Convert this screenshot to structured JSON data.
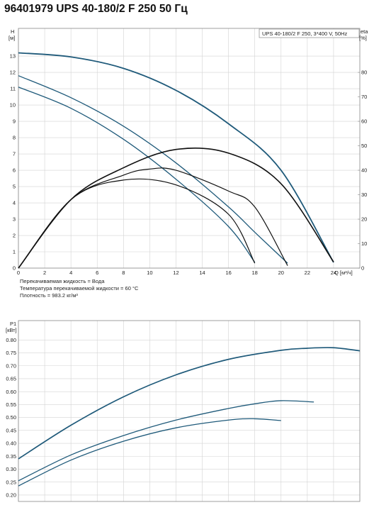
{
  "title": "96401979 UPS 40-180/2 F 250 50 Гц",
  "fluid_info": [
    "Перекачиваемая жидкость = Вода",
    "Температура перекачиваемой жидкости = 60 °C",
    "Плотность = 983.2 кг/м³"
  ],
  "colors": {
    "head": "#1f5a7a",
    "eff": "#111111",
    "power": "#1f5a7a",
    "grid": "#d3d3d3",
    "frame": "#888888"
  },
  "chart_data": [
    {
      "type": "line",
      "legend_text": "UPS 40-180/2 F 250, 3*400 V, 50Hz",
      "legend_position": "top-right",
      "ylabel": [
        "H",
        "[м]"
      ],
      "y2label": [
        "eta",
        "[%]"
      ],
      "xlabel": "Q [м³/ч]",
      "xlim": [
        0,
        26
      ],
      "ylim": [
        0,
        14.7
      ],
      "y2lim": [
        0,
        98
      ],
      "xticks": [
        0,
        2,
        4,
        6,
        8,
        10,
        12,
        14,
        16,
        18,
        20,
        22,
        24
      ],
      "yticks": [
        0,
        1,
        2,
        3,
        4,
        5,
        6,
        7,
        8,
        9,
        10,
        11,
        12,
        13
      ],
      "y2ticks": [
        0,
        10,
        20,
        30,
        40,
        50,
        60,
        70,
        80
      ],
      "grid": true,
      "head_series": [
        {
          "x": [
            0,
            4,
            8,
            12,
            16,
            20,
            24
          ],
          "y": [
            13.2,
            12.95,
            12.25,
            10.9,
            8.85,
            6.0,
            0.35
          ]
        },
        {
          "x": [
            0,
            4,
            8,
            12,
            16,
            18,
            20.5
          ],
          "y": [
            11.8,
            10.45,
            8.7,
            6.45,
            3.75,
            2.2,
            0.3
          ]
        },
        {
          "x": [
            0,
            4,
            8,
            12,
            16,
            18
          ],
          "y": [
            11.1,
            9.8,
            7.9,
            5.45,
            2.55,
            0.35
          ]
        }
      ],
      "efficiency_series": [
        {
          "x": [
            0,
            4,
            8,
            12,
            16,
            20,
            24
          ],
          "y": [
            0,
            28,
            41,
            48.5,
            47,
            34.5,
            2.5
          ]
        },
        {
          "x": [
            0,
            4,
            8,
            10,
            12,
            16,
            18,
            20.5
          ],
          "y": [
            0,
            28,
            38,
            40.5,
            40,
            31.5,
            25,
            1
          ]
        },
        {
          "x": [
            0,
            4,
            8,
            12,
            16,
            18
          ],
          "y": [
            0,
            28,
            36,
            34,
            22,
            2
          ]
        }
      ]
    },
    {
      "type": "line",
      "ylabel": [
        "P1",
        "[кВт]"
      ],
      "xlim": [
        0,
        26
      ],
      "ylim": [
        0.175,
        0.875
      ],
      "xticks": [
        0,
        2,
        4,
        6,
        8,
        10,
        12,
        14,
        16,
        18,
        20,
        22,
        24
      ],
      "yticks": [
        0.2,
        0.25,
        0.3,
        0.35,
        0.4,
        0.45,
        0.5,
        0.55,
        0.6,
        0.65,
        0.7,
        0.75,
        0.8
      ],
      "ytick_labels": [
        "0.20",
        "0.25",
        "0.30",
        "0.35",
        "0.40",
        "0.45",
        "0.50",
        "0.55",
        "0.60",
        "0.65",
        "0.70",
        "0.75",
        "0.80"
      ],
      "grid": true,
      "power_series": [
        {
          "x": [
            0,
            4,
            8,
            12,
            16,
            20,
            22,
            24,
            26
          ],
          "y": [
            0.34,
            0.47,
            0.58,
            0.665,
            0.725,
            0.76,
            0.768,
            0.77,
            0.758
          ]
        },
        {
          "x": [
            0,
            4,
            8,
            12,
            16,
            18,
            20,
            22.5
          ],
          "y": [
            0.255,
            0.355,
            0.43,
            0.49,
            0.535,
            0.553,
            0.565,
            0.56
          ]
        },
        {
          "x": [
            0,
            4,
            8,
            12,
            16,
            18,
            20
          ],
          "y": [
            0.235,
            0.335,
            0.408,
            0.46,
            0.49,
            0.495,
            0.488
          ]
        }
      ]
    }
  ]
}
